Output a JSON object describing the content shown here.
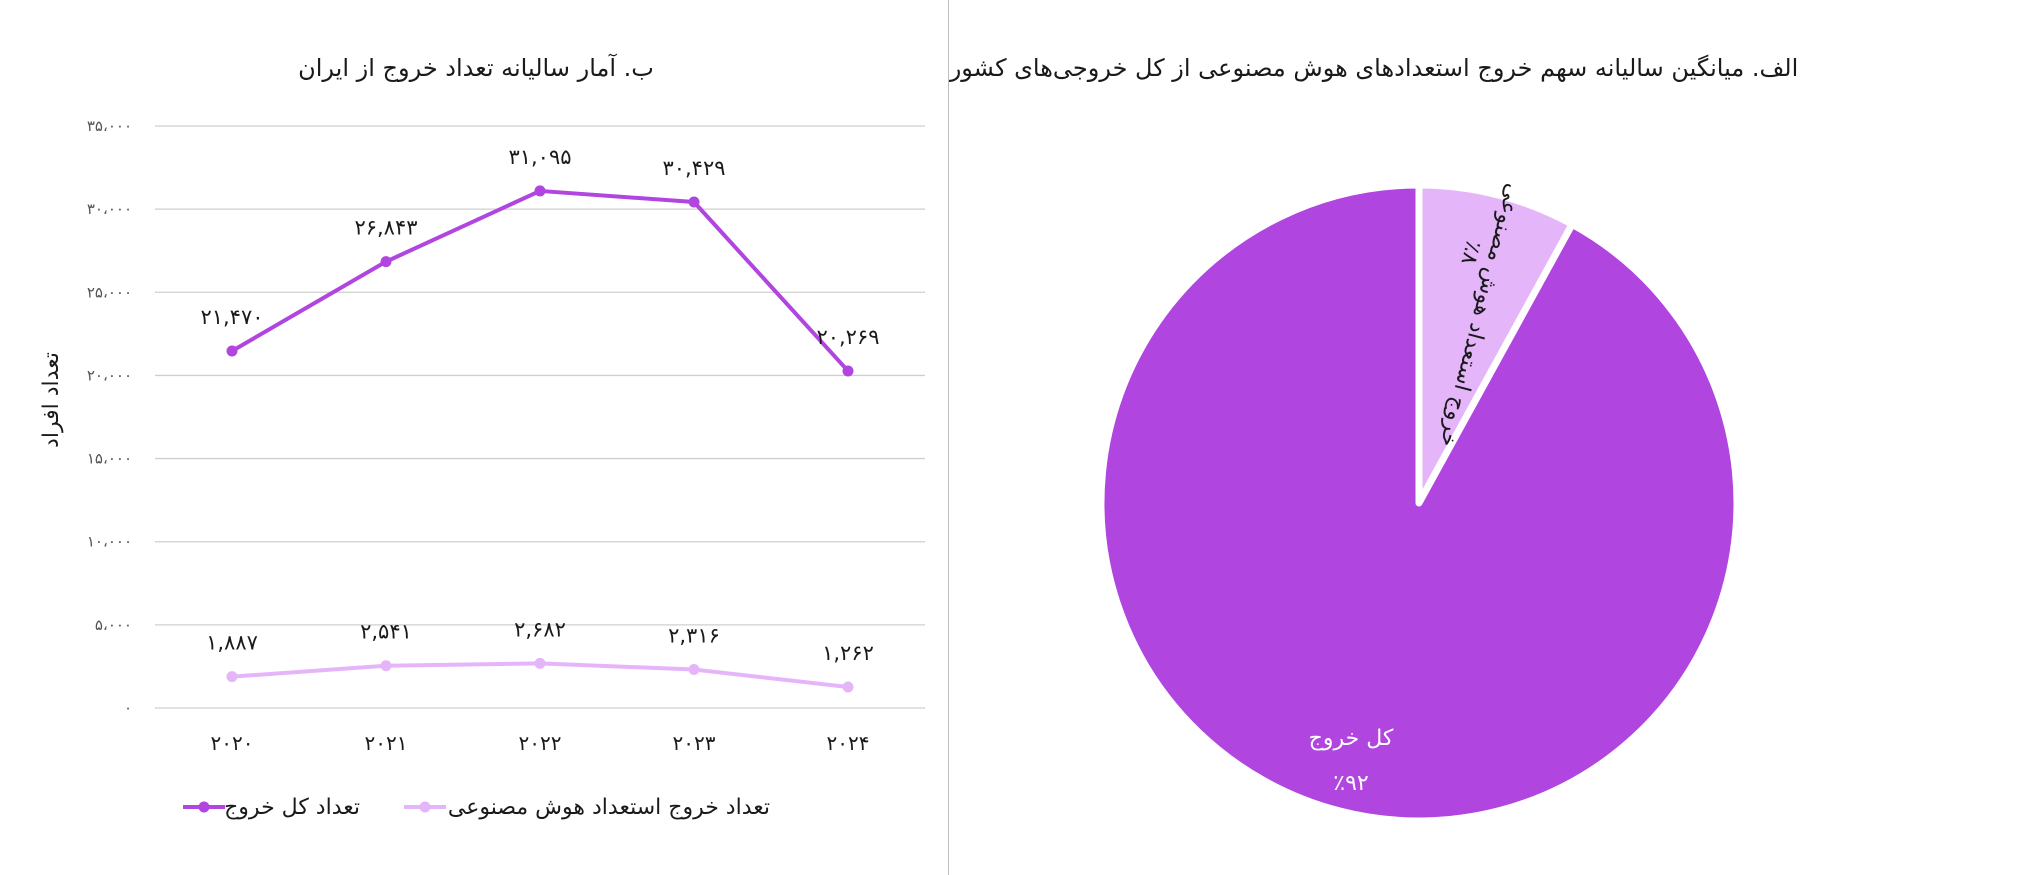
{
  "line_chart": {
    "title": "ب. آمار سالیانه تعداد خروج از ایران",
    "ylabel": "تعداد افراد"
  },
  "pie_chart": {
    "title": "الف. میانگین سالیانه سهم خروج استعدادهای هوش مصنوعی از کل خروجی‌های کشور"
  },
  "colors": {
    "dark_purple": "#b045e0",
    "light_purple": "#e5b5fa",
    "grid": "#cfcfcf"
  },
  "chart_data": [
    {
      "type": "line",
      "title": "ب. آمار سالیانه تعداد خروج از ایران",
      "xlabel": "",
      "ylabel": "تعداد افراد",
      "categories": [
        "۲۰۲۰",
        "۲۰۲۱",
        "۲۰۲۲",
        "۲۰۲۳",
        "۲۰۲۴"
      ],
      "yticks": [
        "۰",
        "۵،۰۰۰",
        "۱۰،۰۰۰",
        "۱۵،۰۰۰",
        "۲۰،۰۰۰",
        "۲۵،۰۰۰",
        "۳۰،۰۰۰",
        "۳۵،۰۰۰"
      ],
      "ylim": [
        0,
        35000
      ],
      "grid": true,
      "legend_position": "bottom",
      "series": [
        {
          "name": "تعداد کل خروج",
          "color": "#b045e0",
          "values": [
            21470,
            26843,
            31095,
            30429,
            20269
          ],
          "labels": [
            "۲۱,۴۷۰",
            "۲۶,۸۴۳",
            "۳۱,۰۹۵",
            "۳۰,۴۲۹",
            "۲۰,۲۶۹"
          ]
        },
        {
          "name": "تعداد خروج استعداد هوش مصنوعی",
          "color": "#e5b5fa",
          "values": [
            1887,
            2541,
            2682,
            2316,
            1262
          ],
          "labels": [
            "۱,۸۸۷",
            "۲,۵۴۱",
            "۲,۶۸۲",
            "۲,۳۱۶",
            "۱,۲۶۲"
          ]
        }
      ]
    },
    {
      "type": "pie",
      "title": "الف. میانگین سالیانه سهم خروج استعدادهای هوش مصنوعی از کل خروجی‌های کشور",
      "slices": [
        {
          "label": "خروج استعداد هوش مصنوعی",
          "value": 8,
          "value_label": "٪۸",
          "color": "#e5b5fa"
        },
        {
          "label": "کل خروج",
          "value": 92,
          "value_label": "٪۹۲",
          "color": "#b045e0"
        }
      ]
    }
  ]
}
